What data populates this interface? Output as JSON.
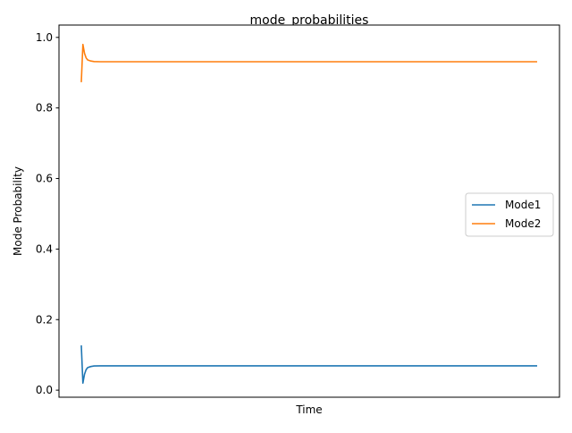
{
  "chart_data": {
    "type": "line",
    "title": "mode_probabilities",
    "xlabel": "Time",
    "ylabel": "Mode Probability",
    "xticks_shown": false,
    "ylim": [
      -0.02,
      1.035
    ],
    "xlim": [
      -7,
      150
    ],
    "yticks": [
      0.0,
      0.2,
      0.4,
      0.6,
      0.8,
      1.0
    ],
    "ytick_labels": [
      "0.0",
      "0.2",
      "0.4",
      "0.6",
      "0.8",
      "1.0"
    ],
    "grid": false,
    "legend_position": "center-right",
    "x": [
      0,
      0.5,
      1,
      1.5,
      2,
      3,
      4,
      6,
      8,
      10,
      20,
      40,
      60,
      80,
      100,
      120,
      143
    ],
    "series": [
      {
        "name": "Mode1",
        "color": "#1f77b4",
        "values": [
          0.127,
          0.02,
          0.045,
          0.058,
          0.064,
          0.067,
          0.0685,
          0.069,
          0.069,
          0.069,
          0.069,
          0.069,
          0.069,
          0.069,
          0.069,
          0.069,
          0.069
        ]
      },
      {
        "name": "Mode2",
        "color": "#ff7f0e",
        "values": [
          0.873,
          0.98,
          0.955,
          0.942,
          0.936,
          0.933,
          0.9315,
          0.931,
          0.931,
          0.931,
          0.931,
          0.931,
          0.931,
          0.931,
          0.931,
          0.931,
          0.931
        ]
      }
    ]
  }
}
